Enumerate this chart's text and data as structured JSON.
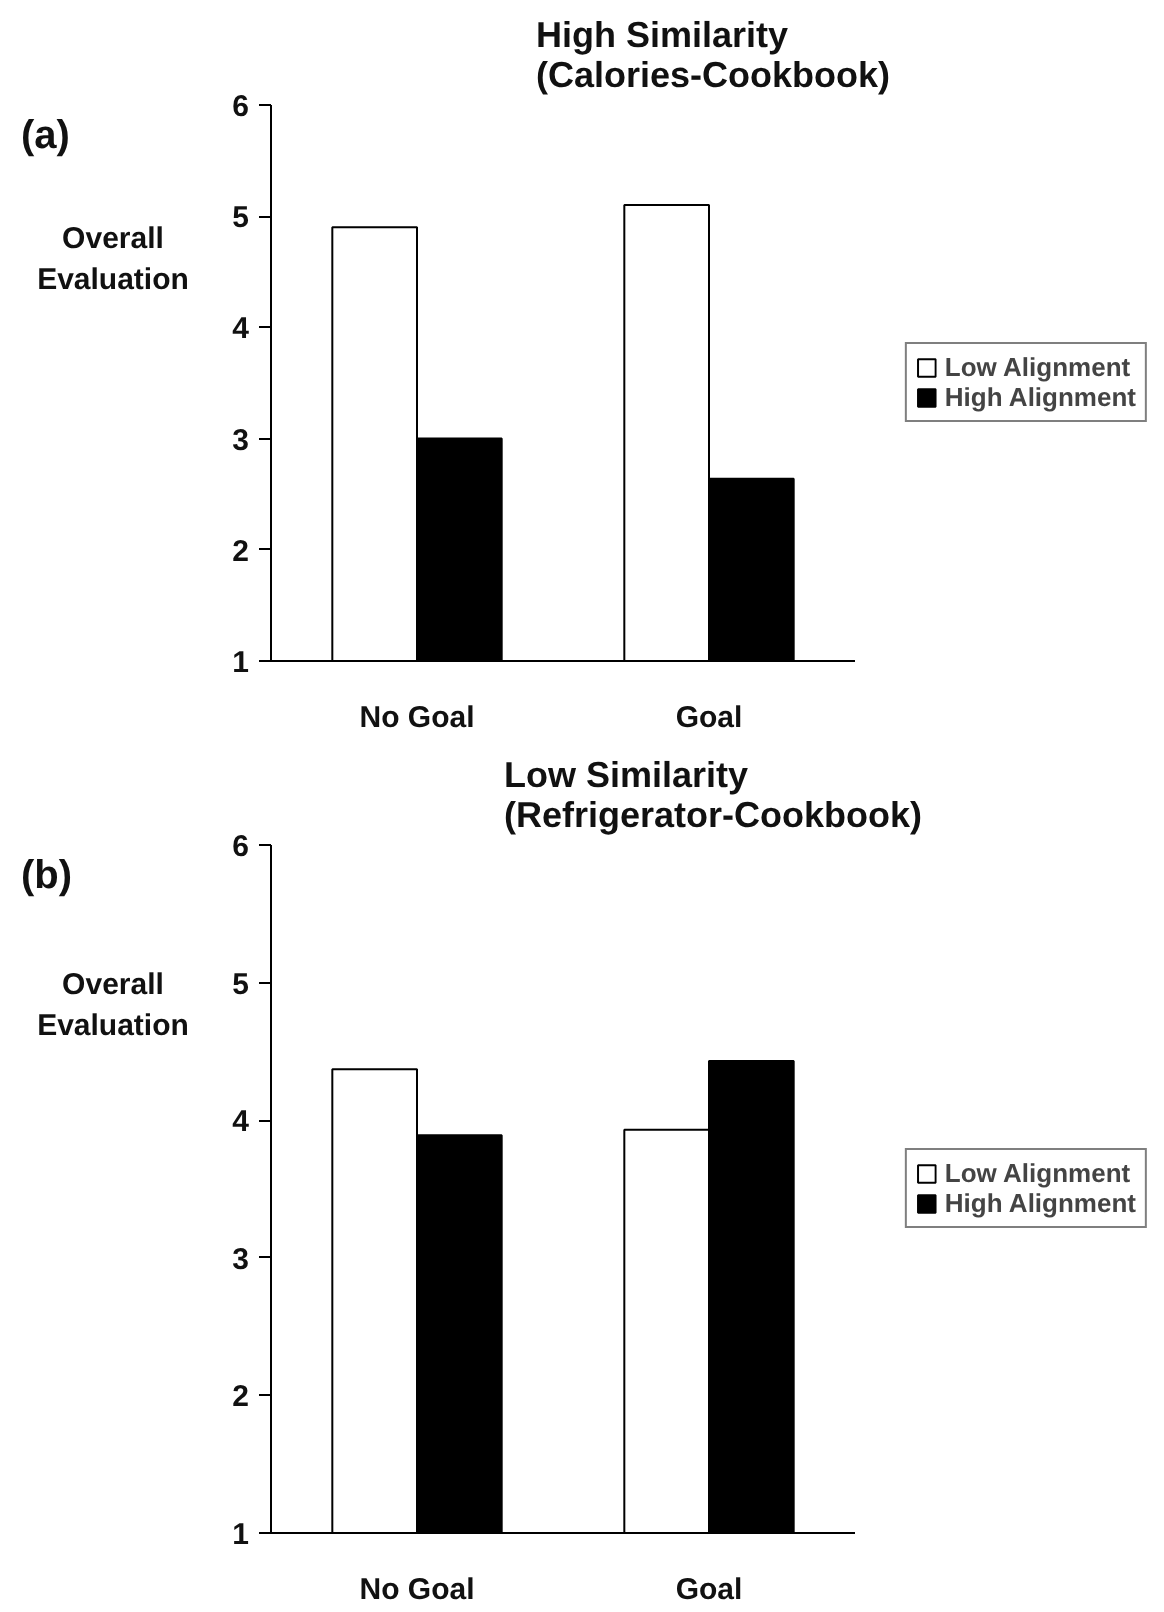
{
  "chart_data": [
    {
      "type": "bar",
      "title": "High Similarity\n(Calories-Cookbook)",
      "ylabel": "Overall\nEvaluation",
      "annotations": [
        "(a)"
      ],
      "categories": [
        "No Goal",
        "Goal"
      ],
      "series": [
        {
          "name": "Low Alignment",
          "color": "#ffffff",
          "values": [
            4.9,
            5.1
          ]
        },
        {
          "name": "High Alignment",
          "color": "#000000",
          "values": [
            3.0,
            2.64
          ]
        }
      ],
      "ylim": [
        1,
        6
      ],
      "yticks": [
        1,
        2,
        3,
        4,
        5,
        6
      ],
      "grid": false,
      "legend": "right"
    },
    {
      "type": "bar",
      "title": "Low Similarity\n(Refrigerator-Cookbook)",
      "ylabel": "Overall\nEvaluation",
      "annotations": [
        "(b)"
      ],
      "categories": [
        "No Goal",
        "Goal"
      ],
      "series": [
        {
          "name": "Low Alignment",
          "color": "#ffffff",
          "values": [
            4.37,
            3.93
          ]
        },
        {
          "name": "High Alignment",
          "color": "#000000",
          "values": [
            3.89,
            4.43
          ]
        }
      ],
      "ylim": [
        1,
        6
      ],
      "yticks": [
        1,
        2,
        3,
        4,
        5,
        6
      ],
      "grid": false,
      "legend": "right"
    }
  ]
}
